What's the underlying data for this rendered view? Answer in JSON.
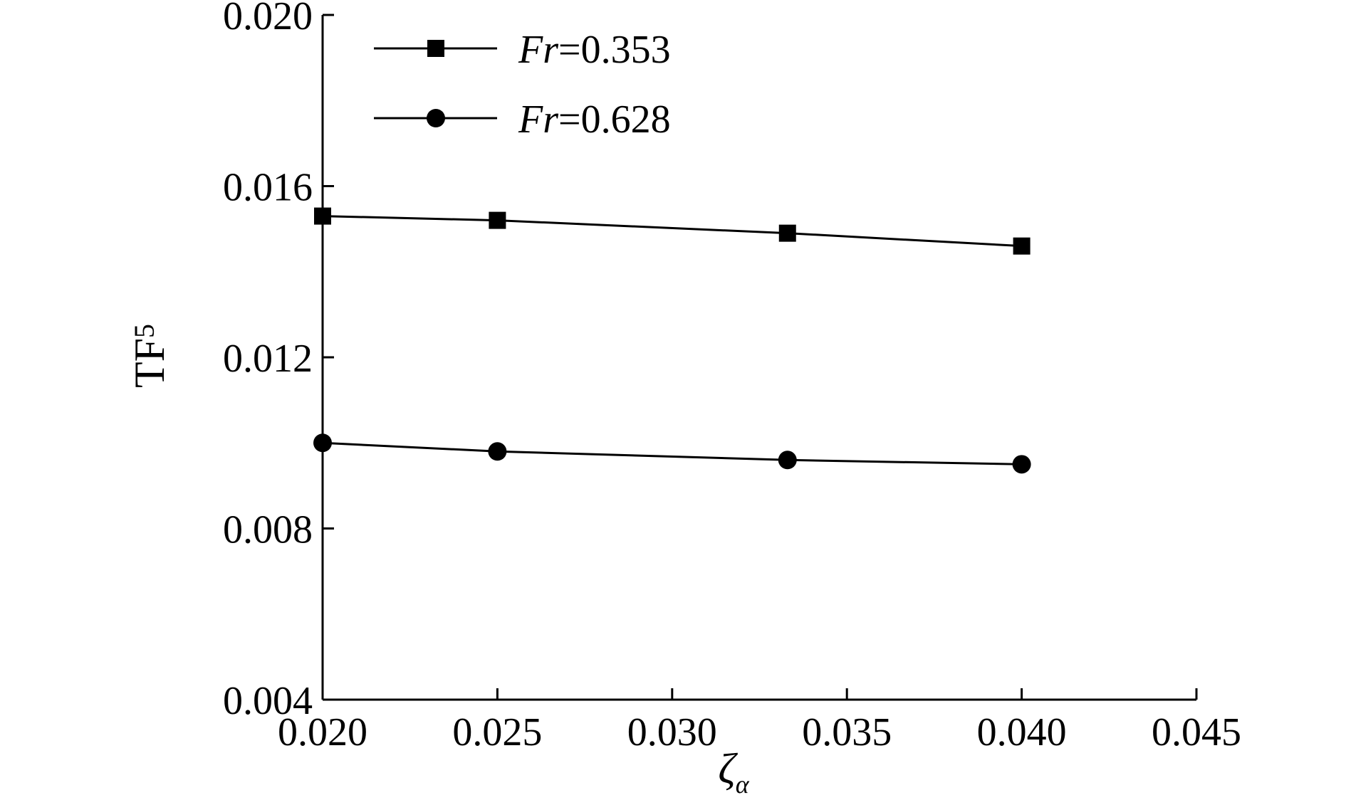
{
  "chart_data": {
    "type": "line",
    "title": "",
    "xlabel": {
      "main": "ζ",
      "sub": "α"
    },
    "ylabel": {
      "main": "TF",
      "sub": "5"
    },
    "xlim": [
      0.02,
      0.045
    ],
    "ylim": [
      0.004,
      0.02
    ],
    "xticks": [
      "0.020",
      "0.025",
      "0.030",
      "0.035",
      "0.040",
      "0.045"
    ],
    "yticks": [
      "0.004",
      "0.008",
      "0.012",
      "0.016",
      "0.020"
    ],
    "grid": false,
    "legend_position": "top-left",
    "series": [
      {
        "name_italic": "Fr",
        "name_rest": "=0.353",
        "marker": "square",
        "color": "#000000",
        "x": [
          0.02,
          0.025,
          0.0333,
          0.04
        ],
        "y": [
          0.0153,
          0.0152,
          0.0149,
          0.0146
        ]
      },
      {
        "name_italic": "Fr",
        "name_rest": "=0.628",
        "marker": "circle",
        "color": "#000000",
        "x": [
          0.02,
          0.025,
          0.0333,
          0.04
        ],
        "y": [
          0.01,
          0.0098,
          0.0096,
          0.0095
        ]
      }
    ]
  }
}
